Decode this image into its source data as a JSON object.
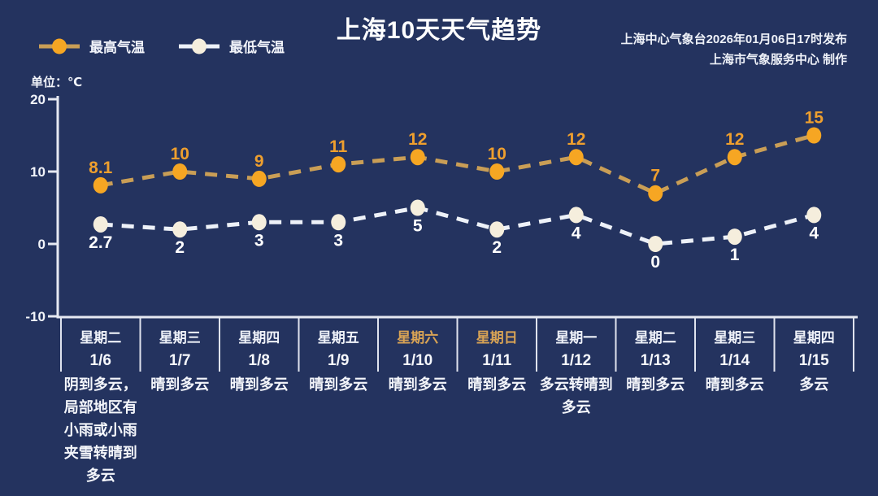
{
  "title": "上海10天天气趋势",
  "publisher": {
    "line1": "上海中心气象台2026年01月06日17时发布",
    "line2": "上海市气象服务中心  制作"
  },
  "unit_label": "单位：℃",
  "legend": [
    {
      "label": "最高气温"
    },
    {
      "label": "最低气温"
    }
  ],
  "colors": {
    "background": "#24335f",
    "axis": "#e6e9f2",
    "divider": "#dfe3ee",
    "weekday_text": "#eef1f8",
    "weekend_text": "#d8a355",
    "date_text": "#f6f8fc",
    "ytick_text": "#f2f4fa"
  },
  "chart_data": {
    "type": "line",
    "title": "上海10天天气趋势",
    "unit": "℃",
    "ylim": [
      -10,
      20
    ],
    "yticks": [
      20,
      10,
      0,
      -10
    ],
    "grid": false,
    "legend_position": "top-left",
    "categories": [
      {
        "weekday": "星期二",
        "date": "1/6",
        "weekend": false,
        "weather": "阴到多云，局部地区有小雨或小雨夹雪转晴到多云"
      },
      {
        "weekday": "星期三",
        "date": "1/7",
        "weekend": false,
        "weather": "晴到多云"
      },
      {
        "weekday": "星期四",
        "date": "1/8",
        "weekend": false,
        "weather": "晴到多云"
      },
      {
        "weekday": "星期五",
        "date": "1/9",
        "weekend": false,
        "weather": "晴到多云"
      },
      {
        "weekday": "星期六",
        "date": "1/10",
        "weekend": true,
        "weather": "晴到多云"
      },
      {
        "weekday": "星期日",
        "date": "1/11",
        "weekend": true,
        "weather": "晴到多云"
      },
      {
        "weekday": "星期一",
        "date": "1/12",
        "weekend": false,
        "weather": "多云转晴到多云"
      },
      {
        "weekday": "星期二",
        "date": "1/13",
        "weekend": false,
        "weather": "晴到多云"
      },
      {
        "weekday": "星期三",
        "date": "1/14",
        "weekend": false,
        "weather": "晴到多云"
      },
      {
        "weekday": "星期四",
        "date": "1/15",
        "weekend": false,
        "weather": "多云"
      }
    ],
    "series": [
      {
        "name": "最高气温",
        "values": [
          8.1,
          10,
          9,
          11,
          12,
          10,
          12,
          7,
          12,
          15
        ],
        "line_color": "#c99e56",
        "marker_color": "#f6a623",
        "label_color": "#ee9f2e"
      },
      {
        "name": "最低气温",
        "values": [
          2.7,
          2,
          3,
          3,
          5,
          2,
          4,
          0,
          1,
          4
        ],
        "line_color": "#edf1f8",
        "marker_color": "#f5eedd",
        "label_color": "#ffffff"
      }
    ]
  }
}
